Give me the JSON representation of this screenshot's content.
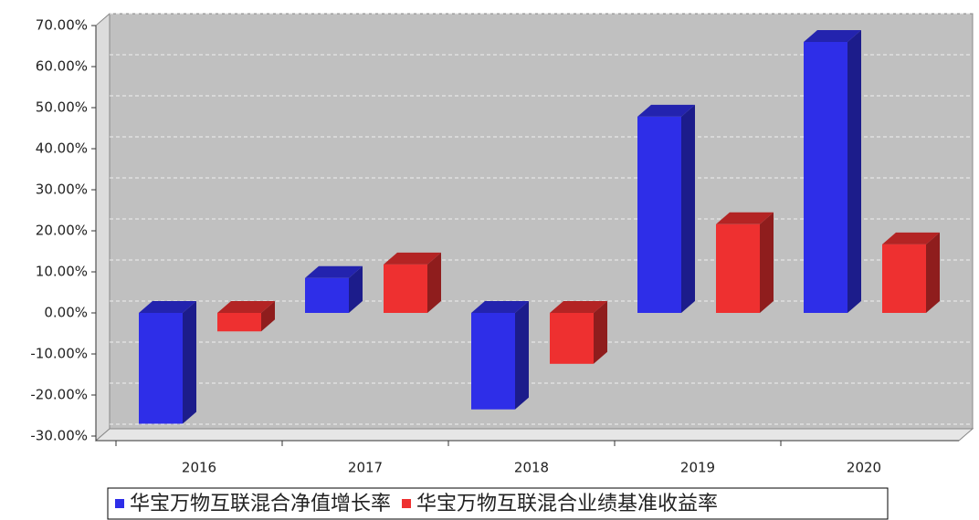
{
  "chart_data": {
    "type": "bar3d",
    "categories": [
      "2016",
      "2017",
      "2018",
      "2019",
      "2020"
    ],
    "series": [
      {
        "name": "华宝万物互联混合净值增长率",
        "color": "#2e2ee8",
        "values": [
          -27,
          8.5,
          -23.5,
          47.8,
          66
        ]
      },
      {
        "name": "华宝万物互联混合业绩基准收益率",
        "color": "#ee3030",
        "values": [
          -4.5,
          11.8,
          -12.4,
          21.6,
          16.7
        ]
      }
    ],
    "ylim": [
      -30,
      70
    ],
    "yticks": [
      {
        "value": -30,
        "label": "-30.00%"
      },
      {
        "value": -20,
        "label": "-20.00%"
      },
      {
        "value": -10,
        "label": "-10.00%"
      },
      {
        "value": 0,
        "label": "0.00%"
      },
      {
        "value": 10,
        "label": "10.00%"
      },
      {
        "value": 20,
        "label": "20.00%"
      },
      {
        "value": 30,
        "label": "30.00%"
      },
      {
        "value": 40,
        "label": "40.00%"
      },
      {
        "value": 50,
        "label": "50.00%"
      },
      {
        "value": 60,
        "label": "60.00%"
      },
      {
        "value": 70,
        "label": "70.00%"
      }
    ],
    "grid": true,
    "legend": "bottom"
  }
}
